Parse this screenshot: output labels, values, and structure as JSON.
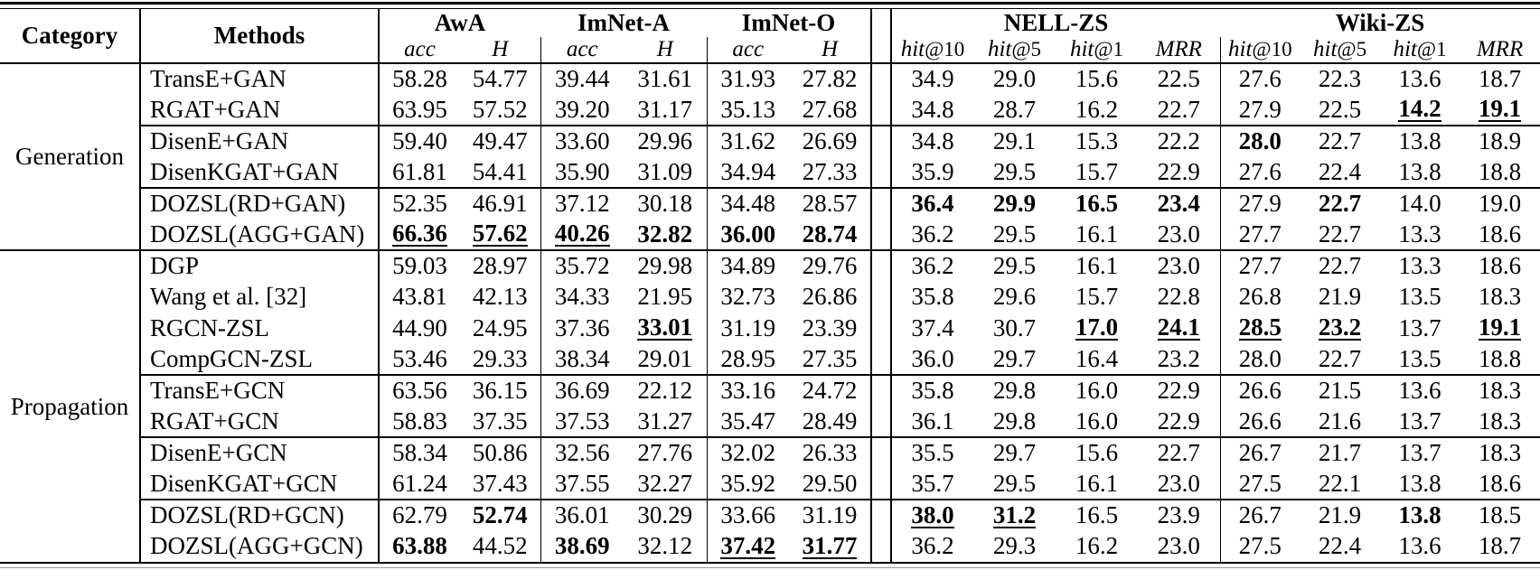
{
  "table": {
    "header": {
      "category": "Category",
      "methods": "Methods",
      "image_groups": [
        {
          "label": "AwA",
          "sub": [
            {
              "i": "acc"
            },
            {
              "i": "H"
            }
          ]
        },
        {
          "label": "ImNet-A",
          "sub": [
            {
              "i": "acc"
            },
            {
              "i": "H"
            }
          ]
        },
        {
          "label": "ImNet-O",
          "sub": [
            {
              "i": "acc"
            },
            {
              "i": "H"
            }
          ]
        }
      ],
      "kg_groups": [
        {
          "label": "NELL-ZS",
          "sub": [
            {
              "i": "hit",
              "r": "@10"
            },
            {
              "i": "hit",
              "r": "@5"
            },
            {
              "i": "hit",
              "r": "@1"
            },
            {
              "i": "MRR"
            }
          ]
        },
        {
          "label": "Wiki-ZS",
          "sub": [
            {
              "i": "hit",
              "r": "@10"
            },
            {
              "i": "hit",
              "r": "@5"
            },
            {
              "i": "hit",
              "r": "@1"
            },
            {
              "i": "MRR"
            }
          ]
        }
      ]
    },
    "groups": [
      {
        "category": "Generation",
        "blocks": [
          [
            {
              "method": "TransE+GAN",
              "values": [
                "58.28",
                "54.77",
                "39.44",
                "31.61",
                "31.93",
                "27.82",
                "34.9",
                "29.0",
                "15.6",
                "22.5",
                "27.6",
                "22.3",
                "13.6",
                "18.7"
              ],
              "bold": [],
              "bold_underline": []
            },
            {
              "method": "RGAT+GAN",
              "values": [
                "63.95",
                "57.52",
                "39.20",
                "31.17",
                "35.13",
                "27.68",
                "34.8",
                "28.7",
                "16.2",
                "22.7",
                "27.9",
                "22.5",
                "14.2",
                "19.1"
              ],
              "bold": [],
              "bold_underline": [
                12,
                13
              ]
            }
          ],
          [
            {
              "method": "DisenE+GAN",
              "values": [
                "59.40",
                "49.47",
                "33.60",
                "29.96",
                "31.62",
                "26.69",
                "34.8",
                "29.1",
                "15.3",
                "22.2",
                "28.0",
                "22.7",
                "13.8",
                "18.9"
              ],
              "bold": [
                10
              ],
              "bold_underline": []
            },
            {
              "method": "DisenKGAT+GAN",
              "values": [
                "61.81",
                "54.41",
                "35.90",
                "31.09",
                "34.94",
                "27.33",
                "35.9",
                "29.5",
                "15.7",
                "22.9",
                "27.6",
                "22.4",
                "13.8",
                "18.8"
              ],
              "bold": [],
              "bold_underline": []
            }
          ],
          [
            {
              "method": "DOZSL(RD+GAN)",
              "values": [
                "52.35",
                "46.91",
                "37.12",
                "30.18",
                "34.48",
                "28.57",
                "36.4",
                "29.9",
                "16.5",
                "23.4",
                "27.9",
                "22.7",
                "14.0",
                "19.0"
              ],
              "bold": [
                6,
                7,
                8,
                9,
                11
              ],
              "bold_underline": []
            },
            {
              "method": "DOZSL(AGG+GAN)",
              "values": [
                "66.36",
                "57.62",
                "40.26",
                "32.82",
                "36.00",
                "28.74",
                "36.2",
                "29.5",
                "16.1",
                "23.0",
                "27.7",
                "22.7",
                "13.3",
                "18.6"
              ],
              "bold": [
                3,
                4,
                5
              ],
              "bold_underline": [
                0,
                1,
                2
              ]
            }
          ]
        ]
      },
      {
        "category": "Propagation",
        "blocks": [
          [
            {
              "method": "DGP",
              "values": [
                "59.03",
                "28.97",
                "35.72",
                "29.98",
                "34.89",
                "29.76",
                "36.2",
                "29.5",
                "16.1",
                "23.0",
                "27.7",
                "22.7",
                "13.3",
                "18.6"
              ],
              "bold": [],
              "bold_underline": []
            },
            {
              "method": "Wang et al. [32]",
              "values": [
                "43.81",
                "42.13",
                "34.33",
                "21.95",
                "32.73",
                "26.86",
                "35.8",
                "29.6",
                "15.7",
                "22.8",
                "26.8",
                "21.9",
                "13.5",
                "18.3"
              ],
              "bold": [],
              "bold_underline": []
            },
            {
              "method": "RGCN-ZSL",
              "values": [
                "44.90",
                "24.95",
                "37.36",
                "33.01",
                "31.19",
                "23.39",
                "37.4",
                "30.7",
                "17.0",
                "24.1",
                "28.5",
                "23.2",
                "13.7",
                "19.1"
              ],
              "bold": [],
              "bold_underline": [
                3,
                8,
                9,
                10,
                11,
                13
              ]
            },
            {
              "method": "CompGCN-ZSL",
              "values": [
                "53.46",
                "29.33",
                "38.34",
                "29.01",
                "28.95",
                "27.35",
                "36.0",
                "29.7",
                "16.4",
                "23.2",
                "28.0",
                "22.7",
                "13.5",
                "18.8"
              ],
              "bold": [],
              "bold_underline": []
            }
          ],
          [
            {
              "method": "TransE+GCN",
              "values": [
                "63.56",
                "36.15",
                "36.69",
                "22.12",
                "33.16",
                "24.72",
                "35.8",
                "29.8",
                "16.0",
                "22.9",
                "26.6",
                "21.5",
                "13.6",
                "18.3"
              ],
              "bold": [],
              "bold_underline": []
            },
            {
              "method": "RGAT+GCN",
              "values": [
                "58.83",
                "37.35",
                "37.53",
                "31.27",
                "35.47",
                "28.49",
                "36.1",
                "29.8",
                "16.0",
                "22.9",
                "26.6",
                "21.6",
                "13.7",
                "18.3"
              ],
              "bold": [],
              "bold_underline": []
            }
          ],
          [
            {
              "method": "DisenE+GCN",
              "values": [
                "58.34",
                "50.86",
                "32.56",
                "27.76",
                "32.02",
                "26.33",
                "35.5",
                "29.7",
                "15.6",
                "22.7",
                "26.7",
                "21.7",
                "13.7",
                "18.3"
              ],
              "bold": [],
              "bold_underline": []
            },
            {
              "method": "DisenKGAT+GCN",
              "values": [
                "61.24",
                "37.43",
                "37.55",
                "32.27",
                "35.92",
                "29.50",
                "35.7",
                "29.5",
                "16.1",
                "23.0",
                "27.5",
                "22.1",
                "13.8",
                "18.6"
              ],
              "bold": [],
              "bold_underline": []
            }
          ],
          [
            {
              "method": "DOZSL(RD+GCN)",
              "values": [
                "62.79",
                "52.74",
                "36.01",
                "30.29",
                "33.66",
                "31.19",
                "38.0",
                "31.2",
                "16.5",
                "23.9",
                "26.7",
                "21.9",
                "13.8",
                "18.5"
              ],
              "bold": [
                1,
                12
              ],
              "bold_underline": [
                6,
                7
              ]
            },
            {
              "method": "DOZSL(AGG+GCN)",
              "values": [
                "63.88",
                "44.52",
                "38.69",
                "32.12",
                "37.42",
                "31.77",
                "36.2",
                "29.3",
                "16.2",
                "23.0",
                "27.5",
                "22.4",
                "13.6",
                "18.7"
              ],
              "bold": [
                0,
                2
              ],
              "bold_underline": [
                4,
                5
              ]
            }
          ]
        ]
      }
    ]
  }
}
